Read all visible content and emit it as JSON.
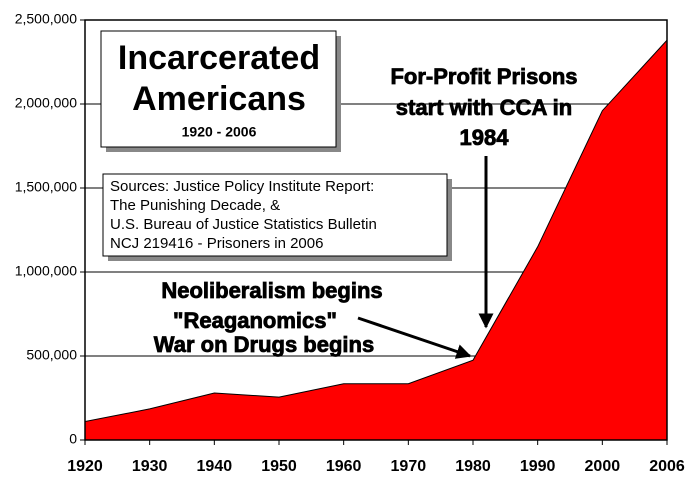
{
  "chart_data": {
    "type": "area",
    "title": [
      "Incarcerated",
      "Americans"
    ],
    "subtitle": "1920 - 2006",
    "sources": [
      "Sources: Justice Policy Institute Report:",
      "The Punishing Decade, &",
      "U.S. Bureau of Justice Statistics Bulletin",
      "NCJ 219416 - Prisoners in 2006"
    ],
    "annotations": [
      [
        "For-Profit Prisons",
        "start with CCA in",
        "1984"
      ],
      [
        "Neoliberalism begins",
        "\"Reaganomics\"",
        "War on Drugs begins"
      ]
    ],
    "categories": [
      "1920",
      "1930",
      "1940",
      "1950",
      "1960",
      "1970",
      "1980",
      "1990",
      "2000",
      "2006"
    ],
    "values": [
      110000,
      185000,
      280000,
      255000,
      335000,
      335000,
      475000,
      1150000,
      1960000,
      2380000
    ],
    "color": "#ff0000",
    "ylim": [
      0,
      2500000
    ],
    "yticks": [
      0,
      {
        "value": 500000,
        "label": "500,000"
      },
      {
        "value": 1000000,
        "label": "1,000,000"
      },
      {
        "value": 1500000,
        "label": "1,500,000"
      },
      {
        "value": 2000000,
        "label": "2,000,000"
      },
      {
        "value": 2500000,
        "label": "2,500,000"
      }
    ],
    "grid": true
  }
}
